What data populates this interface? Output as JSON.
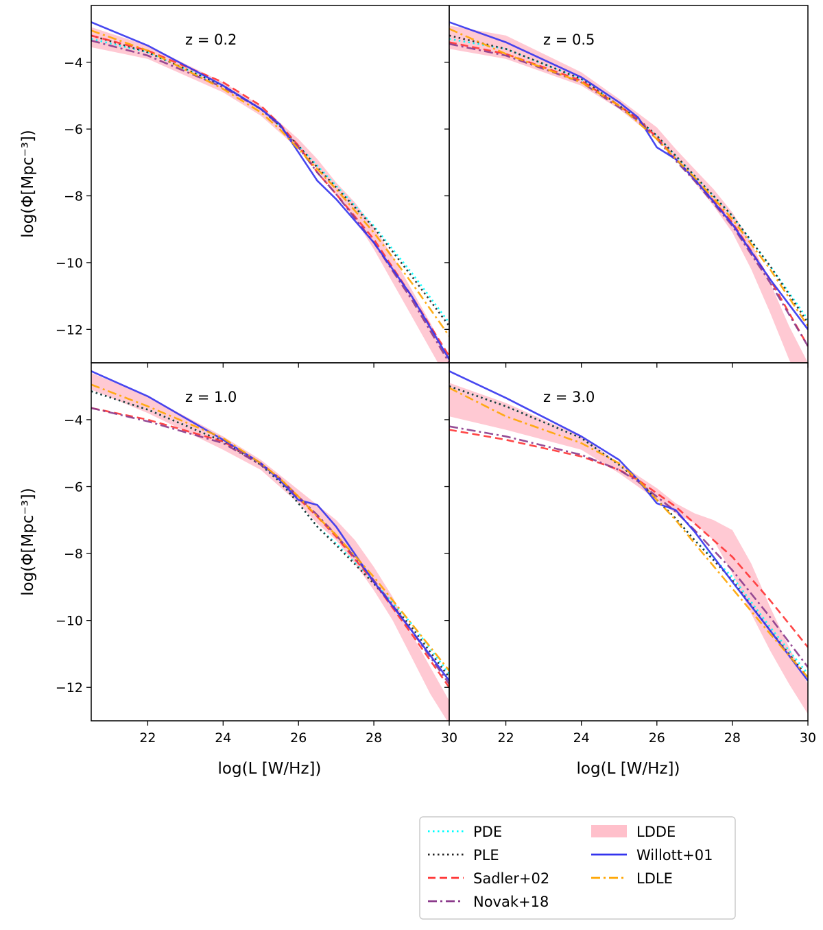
{
  "chart_data": {
    "type": "line",
    "layout": "2x2 grid, shared axes",
    "xlabel": "log(L [W/Hz])",
    "ylabel": "log(Φ[Mpc⁻³])",
    "xlim": [
      20.5,
      30
    ],
    "ylim": [
      -13,
      -2.3
    ],
    "xticks": [
      22,
      24,
      26,
      28,
      30
    ],
    "yticks": [
      -4,
      -6,
      -8,
      -10,
      -12
    ],
    "legend_position": "bottom-right, below plots, 2 columns",
    "legend": [
      {
        "name": "PDE",
        "key": "pde",
        "color": "#00ffff",
        "style": "dotted"
      },
      {
        "name": "PLE",
        "key": "ple",
        "color": "#222222",
        "style": "dotted"
      },
      {
        "name": "Sadler+02",
        "key": "sadler",
        "color": "#ff3333",
        "style": "dashed"
      },
      {
        "name": "Novak+18",
        "key": "novak",
        "color": "#8b3a8b",
        "style": "dashdot"
      },
      {
        "name": "LDDE",
        "key": "ldde",
        "color": "#ffc0cb",
        "style": "band"
      },
      {
        "name": "Willott+01",
        "key": "willott",
        "color": "#3333ee",
        "style": "solid"
      },
      {
        "name": "LDLE",
        "key": "ldle",
        "color": "#ffa500",
        "style": "dashdot"
      }
    ],
    "panels": [
      {
        "label": "z = 0.2",
        "x": [
          20.5,
          22,
          24,
          25,
          25.5,
          26,
          26.5,
          27,
          28,
          29,
          30
        ],
        "series": [
          {
            "key": "pde",
            "values": [
              -3.3,
              -3.7,
              -4.7,
              -5.4,
              -5.9,
              -6.5,
              -7.1,
              -7.7,
              -8.9,
              -10.3,
              -11.8
            ]
          },
          {
            "key": "ple",
            "values": [
              -3.2,
              -3.7,
              -4.7,
              -5.4,
              -5.9,
              -6.5,
              -7.15,
              -7.75,
              -8.95,
              -10.4,
              -11.9
            ]
          },
          {
            "key": "sadler",
            "values": [
              -3.2,
              -3.65,
              -4.6,
              -5.3,
              -5.85,
              -6.5,
              -7.3,
              -7.95,
              -9.3,
              -11.0,
              -12.8
            ]
          },
          {
            "key": "novak",
            "values": [
              -3.35,
              -3.8,
              -4.75,
              -5.4,
              -5.9,
              -6.55,
              -7.3,
              -7.95,
              -9.4,
              -11.1,
              -13.0
            ]
          },
          {
            "key": "willott",
            "values": [
              -2.8,
              -3.5,
              -4.7,
              -5.4,
              -5.85,
              -6.7,
              -7.55,
              -8.1,
              -9.4,
              -11.0,
              -12.9
            ]
          },
          {
            "key": "ldle",
            "values": [
              -3.05,
              -3.65,
              -4.8,
              -5.5,
              -6.0,
              -6.6,
              -7.2,
              -7.8,
              -9.1,
              -10.6,
              -12.2
            ]
          }
        ],
        "band": {
          "key": "ldde",
          "x": [
            20.5,
            22,
            24,
            25,
            26,
            26.5,
            27,
            27.5,
            28,
            28.5,
            29,
            29.5,
            30
          ],
          "lower": [
            -3.55,
            -3.9,
            -4.9,
            -5.6,
            -6.6,
            -7.2,
            -8.0,
            -8.7,
            -9.6,
            -10.6,
            -11.6,
            -12.6,
            -13.6
          ],
          "upper": [
            -2.95,
            -3.5,
            -4.6,
            -5.3,
            -6.3,
            -6.9,
            -7.6,
            -8.2,
            -8.95,
            -9.8,
            -10.8,
            -11.8,
            -12.9
          ]
        }
      },
      {
        "label": "z = 0.5",
        "x": [
          20.5,
          22,
          24,
          25,
          25.5,
          26,
          26.5,
          27,
          28,
          29,
          30
        ],
        "series": [
          {
            "key": "pde",
            "values": [
              -3.3,
              -3.6,
              -4.5,
              -5.3,
              -5.7,
              -6.2,
              -6.8,
              -7.4,
              -8.6,
              -10.1,
              -11.7
            ]
          },
          {
            "key": "ple",
            "values": [
              -3.2,
              -3.6,
              -4.5,
              -5.3,
              -5.7,
              -6.2,
              -6.8,
              -7.4,
              -8.6,
              -10.1,
              -11.8
            ]
          },
          {
            "key": "sadler",
            "values": [
              -3.4,
              -3.75,
              -4.55,
              -5.3,
              -5.7,
              -6.25,
              -6.9,
              -7.5,
              -8.8,
              -10.5,
              -12.5
            ]
          },
          {
            "key": "novak",
            "values": [
              -3.45,
              -3.8,
              -4.6,
              -5.35,
              -5.75,
              -6.3,
              -6.95,
              -7.55,
              -8.9,
              -10.6,
              -12.5
            ]
          },
          {
            "key": "willott",
            "values": [
              -2.8,
              -3.4,
              -4.45,
              -5.2,
              -5.65,
              -6.55,
              -6.9,
              -7.5,
              -8.85,
              -10.5,
              -12.0
            ]
          },
          {
            "key": "ldle",
            "values": [
              -3.0,
              -3.75,
              -4.6,
              -5.3,
              -5.8,
              -6.3,
              -6.9,
              -7.45,
              -8.7,
              -10.2,
              -11.9
            ]
          }
        ],
        "band": {
          "key": "ldde",
          "x": [
            20.5,
            22,
            24,
            25,
            26,
            26.5,
            27,
            27.5,
            28,
            28.5,
            29,
            29.5,
            30
          ],
          "lower": [
            -3.6,
            -3.9,
            -4.7,
            -5.4,
            -6.3,
            -6.9,
            -7.6,
            -8.3,
            -9.1,
            -10.2,
            -11.5,
            -12.9,
            -14.0
          ],
          "upper": [
            -2.9,
            -3.2,
            -4.3,
            -5.1,
            -5.95,
            -6.6,
            -7.2,
            -7.8,
            -8.5,
            -9.4,
            -10.6,
            -11.9,
            -13.0
          ]
        }
      },
      {
        "label": "z = 1.0",
        "x": [
          20.5,
          22,
          24,
          25,
          25.5,
          26,
          26.5,
          27,
          28,
          29,
          30
        ],
        "series": [
          {
            "key": "pde",
            "values": [
              -3.15,
              -3.7,
              -4.65,
              -5.35,
              -5.85,
              -6.5,
              -7.2,
              -7.7,
              -8.85,
              -10.1,
              -11.6
            ]
          },
          {
            "key": "ple",
            "values": [
              -3.15,
              -3.7,
              -4.65,
              -5.35,
              -5.85,
              -6.5,
              -7.2,
              -7.75,
              -8.9,
              -10.2,
              -11.7
            ]
          },
          {
            "key": "sadler",
            "values": [
              -3.65,
              -4.0,
              -4.65,
              -5.3,
              -5.75,
              -6.35,
              -6.9,
              -7.5,
              -8.85,
              -10.4,
              -12.0
            ]
          },
          {
            "key": "novak",
            "values": [
              -3.65,
              -4.05,
              -4.7,
              -5.35,
              -5.75,
              -6.3,
              -6.85,
              -7.45,
              -8.8,
              -10.3,
              -11.9
            ]
          },
          {
            "key": "willott",
            "values": [
              -2.55,
              -3.3,
              -4.6,
              -5.3,
              -5.8,
              -6.4,
              -6.55,
              -7.2,
              -8.85,
              -10.3,
              -11.8
            ]
          },
          {
            "key": "ldle",
            "values": [
              -2.95,
              -3.6,
              -4.55,
              -5.3,
              -5.75,
              -6.3,
              -6.9,
              -7.45,
              -8.7,
              -10.1,
              -11.5
            ]
          }
        ],
        "band": {
          "key": "ldde",
          "x": [
            20.5,
            22,
            24,
            25,
            26,
            26.5,
            27,
            27.5,
            28,
            28.5,
            29,
            29.5,
            30
          ],
          "lower": [
            -3.1,
            -3.8,
            -4.9,
            -5.5,
            -6.5,
            -7.1,
            -7.6,
            -8.3,
            -9.1,
            -10.0,
            -11.1,
            -12.2,
            -13.1
          ],
          "upper": [
            -2.6,
            -3.3,
            -4.5,
            -5.2,
            -6.1,
            -6.55,
            -7.0,
            -7.6,
            -8.4,
            -9.3,
            -10.4,
            -11.4,
            -12.4
          ]
        }
      },
      {
        "label": "z = 3.0",
        "x": [
          20.5,
          22,
          24,
          25,
          25.5,
          26,
          26.5,
          27,
          28,
          29,
          30
        ],
        "series": [
          {
            "key": "pde",
            "values": [
              -3.0,
              -3.6,
              -4.55,
              -5.35,
              -5.8,
              -6.4,
              -6.95,
              -7.6,
              -8.7,
              -10.2,
              -11.6
            ]
          },
          {
            "key": "ple",
            "values": [
              -3.0,
              -3.6,
              -4.55,
              -5.35,
              -5.8,
              -6.4,
              -6.95,
              -7.6,
              -8.8,
              -10.3,
              -11.7
            ]
          },
          {
            "key": "sadler",
            "values": [
              -4.3,
              -4.6,
              -5.1,
              -5.5,
              -5.8,
              -6.2,
              -6.6,
              -7.1,
              -8.1,
              -9.4,
              -10.8
            ]
          },
          {
            "key": "novak",
            "values": [
              -4.2,
              -4.5,
              -5.05,
              -5.5,
              -5.85,
              -6.3,
              -6.75,
              -7.3,
              -8.5,
              -9.9,
              -11.4
            ]
          },
          {
            "key": "willott",
            "values": [
              -2.55,
              -3.35,
              -4.5,
              -5.2,
              -5.8,
              -6.5,
              -6.7,
              -7.35,
              -8.85,
              -10.3,
              -11.8
            ]
          },
          {
            "key": "ldle",
            "values": [
              -3.05,
              -3.9,
              -4.7,
              -5.3,
              -5.8,
              -6.4,
              -7.0,
              -7.7,
              -9.05,
              -10.4,
              -11.7
            ]
          }
        ],
        "band": {
          "key": "ldde",
          "x": [
            20.5,
            22,
            24,
            25,
            26,
            26.5,
            27,
            27.5,
            28,
            28.5,
            29,
            29.5,
            30
          ],
          "lower": [
            -3.9,
            -4.3,
            -4.9,
            -5.6,
            -6.4,
            -6.8,
            -7.1,
            -7.6,
            -8.6,
            -9.8,
            -10.9,
            -11.9,
            -12.8
          ],
          "upper": [
            -2.9,
            -3.5,
            -4.5,
            -5.3,
            -6.05,
            -6.5,
            -6.8,
            -7.0,
            -7.3,
            -8.3,
            -9.6,
            -10.8,
            -11.9
          ]
        }
      }
    ]
  }
}
